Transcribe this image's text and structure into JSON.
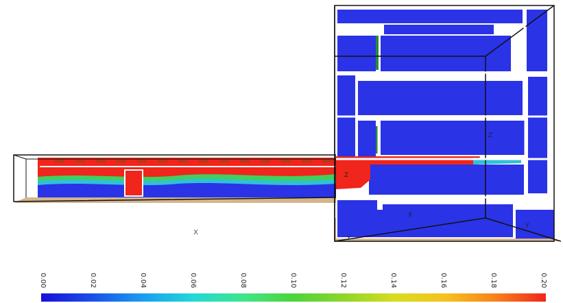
{
  "colormap": {
    "ticks": [
      "0.00",
      "0.02",
      "0.04",
      "0.06",
      "0.08",
      "0.10",
      "0.12",
      "0.14",
      "0.16",
      "0.18",
      "0.20"
    ],
    "stops": [
      "#1a0fd9",
      "#1a4fe8",
      "#1a9cf0",
      "#20d8d8",
      "#3ee68a",
      "#4cd43a",
      "#8ed62a",
      "#d8dc20",
      "#f6c21e",
      "#f8821c",
      "#f0251c"
    ]
  },
  "axis_markers": {
    "floor_x": "X",
    "box_z_upper": "Z",
    "box_z_lower": "Z",
    "box_y_bottom": "Y",
    "box_y_right": "Y",
    "box_x_floor": "X",
    "corridor_z": "Z"
  },
  "colors": {
    "corridor_red": "#f0251c",
    "room_blue": "#2a33e6",
    "floor_tan": "#d4b58c",
    "cyan_plume": "#30c0d8",
    "green_band": "#3fd060"
  }
}
